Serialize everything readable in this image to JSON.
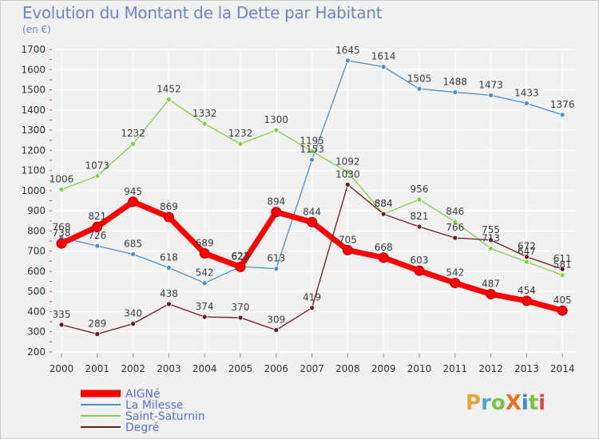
{
  "title": "Evolution du Montant de la Dette par Habitant",
  "unit": "(en €)",
  "logo": {
    "text": "ProXiti",
    "colors": [
      "#e8a23b",
      "#4aa3d6",
      "#7cc242",
      "#e8702a",
      "#3d8bd0",
      "#7cc242",
      "#d94848"
    ]
  },
  "chart_data": {
    "type": "line",
    "x": [
      "2000",
      "2001",
      "2002",
      "2003",
      "2004",
      "2005",
      "2006",
      "2007",
      "2008",
      "2009",
      "2010",
      "2011",
      "2012",
      "2013",
      "2014"
    ],
    "ylim": [
      200,
      1700
    ],
    "yticks": [
      "200",
      "300",
      "400",
      "500",
      "600",
      "700",
      "800",
      "900",
      "1000",
      "1100",
      "1200",
      "1300",
      "1400",
      "1500",
      "1600",
      "1700"
    ],
    "grid": true,
    "legend_position": "bottom-left",
    "series": [
      {
        "name": "AIGNé",
        "color": "#ff0000",
        "values": [
          738,
          821,
          945,
          869,
          689,
          622,
          894,
          844,
          705,
          668,
          603,
          542,
          487,
          454,
          405
        ]
      },
      {
        "name": "La Milesse",
        "color": "#4f8ec6",
        "values": [
          768,
          726,
          685,
          618,
          542,
          623,
          613,
          1153,
          1645,
          1614,
          1505,
          1488,
          1473,
          1433,
          1376
        ]
      },
      {
        "name": "Saint-Saturnin",
        "color": "#7fd13f",
        "values": [
          1006,
          1073,
          1232,
          1452,
          1332,
          1232,
          1300,
          1195,
          1092,
          884,
          956,
          846,
          713,
          647,
          581
        ]
      },
      {
        "name": "Degré",
        "color": "#6b1a1a",
        "values": [
          335,
          289,
          340,
          438,
          374,
          370,
          309,
          419,
          1030,
          884,
          821,
          766,
          755,
          672,
          611
        ]
      }
    ]
  }
}
